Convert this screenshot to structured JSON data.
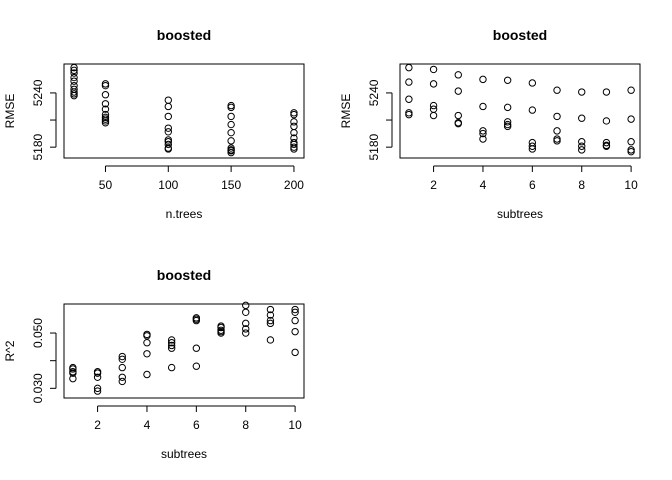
{
  "chart_data": [
    {
      "type": "scatter",
      "title": "boosted",
      "xlabel": "n.trees",
      "ylabel": "RMSE",
      "xticks": [
        50,
        100,
        150,
        200
      ],
      "yticks": [
        5180,
        5210,
        5240
      ],
      "ytick_labels": [
        "5180",
        "",
        "5240"
      ],
      "xlim": [
        17,
        208
      ],
      "ylim": [
        5168,
        5272
      ],
      "points": [
        [
          25,
          5268
        ],
        [
          25,
          5265
        ],
        [
          25,
          5262
        ],
        [
          25,
          5257
        ],
        [
          25,
          5253
        ],
        [
          25,
          5248
        ],
        [
          25,
          5244
        ],
        [
          25,
          5241
        ],
        [
          25,
          5239
        ],
        [
          25,
          5237
        ],
        [
          50,
          5250
        ],
        [
          50,
          5248
        ],
        [
          50,
          5238
        ],
        [
          50,
          5228
        ],
        [
          50,
          5222
        ],
        [
          50,
          5216
        ],
        [
          50,
          5213
        ],
        [
          50,
          5211
        ],
        [
          50,
          5209
        ],
        [
          50,
          5207
        ],
        [
          100,
          5232
        ],
        [
          100,
          5225
        ],
        [
          100,
          5214
        ],
        [
          100,
          5201
        ],
        [
          100,
          5197
        ],
        [
          100,
          5188
        ],
        [
          100,
          5186
        ],
        [
          100,
          5183
        ],
        [
          100,
          5179
        ],
        [
          100,
          5178
        ],
        [
          150,
          5226
        ],
        [
          150,
          5224
        ],
        [
          150,
          5214
        ],
        [
          150,
          5205
        ],
        [
          150,
          5196
        ],
        [
          150,
          5187
        ],
        [
          150,
          5179
        ],
        [
          150,
          5177
        ],
        [
          150,
          5176
        ],
        [
          150,
          5174
        ],
        [
          200,
          5218
        ],
        [
          200,
          5216
        ],
        [
          200,
          5208
        ],
        [
          200,
          5203
        ],
        [
          200,
          5196
        ],
        [
          200,
          5190
        ],
        [
          200,
          5185
        ],
        [
          200,
          5183
        ],
        [
          200,
          5180
        ],
        [
          200,
          5178
        ]
      ]
    },
    {
      "type": "scatter",
      "title": "boosted",
      "xlabel": "subtrees",
      "ylabel": "RMSE",
      "xticks": [
        2,
        4,
        6,
        8,
        10
      ],
      "yticks": [
        5180,
        5210,
        5240
      ],
      "ytick_labels": [
        "5180",
        "",
        "5240"
      ],
      "xlim": [
        0.64,
        10.36
      ],
      "ylim": [
        5168,
        5272
      ],
      "points": [
        [
          1,
          5268
        ],
        [
          1,
          5252
        ],
        [
          1,
          5233
        ],
        [
          1,
          5218
        ],
        [
          1,
          5216
        ],
        [
          2,
          5266
        ],
        [
          2,
          5250
        ],
        [
          2,
          5226
        ],
        [
          2,
          5222
        ],
        [
          2,
          5215
        ],
        [
          3,
          5260
        ],
        [
          3,
          5242
        ],
        [
          3,
          5215
        ],
        [
          3,
          5207
        ],
        [
          3,
          5206
        ],
        [
          4,
          5255
        ],
        [
          4,
          5225
        ],
        [
          4,
          5198
        ],
        [
          4,
          5195
        ],
        [
          4,
          5189
        ],
        [
          5,
          5254
        ],
        [
          5,
          5224
        ],
        [
          5,
          5208
        ],
        [
          5,
          5205
        ],
        [
          5,
          5203
        ],
        [
          6,
          5251
        ],
        [
          6,
          5221
        ],
        [
          6,
          5185
        ],
        [
          6,
          5181
        ],
        [
          6,
          5178
        ],
        [
          7,
          5243
        ],
        [
          7,
          5214
        ],
        [
          7,
          5198
        ],
        [
          7,
          5189
        ],
        [
          7,
          5187
        ],
        [
          8,
          5241
        ],
        [
          8,
          5212
        ],
        [
          8,
          5186
        ],
        [
          8,
          5181
        ],
        [
          8,
          5177
        ],
        [
          9,
          5241
        ],
        [
          9,
          5209
        ],
        [
          9,
          5185
        ],
        [
          9,
          5182
        ],
        [
          9,
          5181
        ],
        [
          10,
          5243
        ],
        [
          10,
          5211
        ],
        [
          10,
          5186
        ],
        [
          10,
          5177
        ],
        [
          10,
          5175
        ]
      ]
    },
    {
      "type": "scatter",
      "title": "boosted",
      "xlabel": "subtrees",
      "ylabel": "R^2",
      "xticks": [
        2,
        4,
        6,
        8,
        10
      ],
      "yticks": [
        0.03,
        0.04,
        0.05
      ],
      "ytick_labels": [
        "0.030",
        "",
        "0.050"
      ],
      "xlim": [
        0.64,
        10.36
      ],
      "ylim": [
        0.0265,
        0.0605
      ],
      "points": [
        [
          1,
          0.0375
        ],
        [
          1,
          0.037
        ],
        [
          1,
          0.036
        ],
        [
          1,
          0.0355
        ],
        [
          1,
          0.0335
        ],
        [
          2,
          0.036
        ],
        [
          2,
          0.0355
        ],
        [
          2,
          0.034
        ],
        [
          2,
          0.03
        ],
        [
          2,
          0.029
        ],
        [
          3,
          0.0415
        ],
        [
          3,
          0.0405
        ],
        [
          3,
          0.0375
        ],
        [
          3,
          0.034
        ],
        [
          3,
          0.0325
        ],
        [
          4,
          0.0495
        ],
        [
          4,
          0.049
        ],
        [
          4,
          0.0465
        ],
        [
          4,
          0.0425
        ],
        [
          4,
          0.035
        ],
        [
          5,
          0.0475
        ],
        [
          5,
          0.0465
        ],
        [
          5,
          0.0455
        ],
        [
          5,
          0.0445
        ],
        [
          5,
          0.0375
        ],
        [
          6,
          0.0555
        ],
        [
          6,
          0.055
        ],
        [
          6,
          0.0545
        ],
        [
          6,
          0.0445
        ],
        [
          6,
          0.038
        ],
        [
          7,
          0.0525
        ],
        [
          7,
          0.052
        ],
        [
          7,
          0.051
        ],
        [
          7,
          0.0505
        ],
        [
          7,
          0.05
        ],
        [
          8,
          0.06
        ],
        [
          8,
          0.0575
        ],
        [
          8,
          0.0535
        ],
        [
          8,
          0.0515
        ],
        [
          8,
          0.05
        ],
        [
          9,
          0.0585
        ],
        [
          9,
          0.0565
        ],
        [
          9,
          0.0545
        ],
        [
          9,
          0.0535
        ],
        [
          9,
          0.0475
        ],
        [
          10,
          0.0585
        ],
        [
          10,
          0.0575
        ],
        [
          10,
          0.0545
        ],
        [
          10,
          0.0505
        ],
        [
          10,
          0.043
        ]
      ]
    }
  ]
}
